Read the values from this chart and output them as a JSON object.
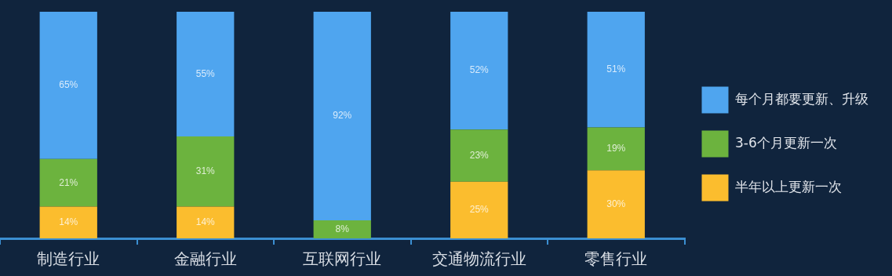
{
  "chart_data": {
    "type": "bar",
    "stacked": true,
    "categories": [
      "制造行业",
      "金融行业",
      "互联网行业",
      "交通物流行业",
      "零售行业"
    ],
    "series": [
      {
        "name": "半年以上更新一次",
        "color": "#fbbd2e",
        "values": [
          14,
          14,
          null,
          25,
          30
        ],
        "value_labels": [
          "14%",
          "14%",
          null,
          "25%",
          "30%"
        ]
      },
      {
        "name": "3-6个月更新一次",
        "color": "#6cb33e",
        "values": [
          21,
          31,
          8,
          23,
          19
        ],
        "value_labels": [
          "21%",
          "31%",
          "8%",
          "23%",
          "19%"
        ]
      },
      {
        "name": "每个月都要更新、升级",
        "color": "#4fa5ef",
        "values": [
          65,
          55,
          92,
          52,
          51
        ],
        "value_labels": [
          "65%",
          "55%",
          "92%",
          "52%",
          "51%"
        ]
      }
    ],
    "ylim": [
      0,
      100
    ],
    "tick_labels": "x",
    "grid": false,
    "legend": "right"
  }
}
